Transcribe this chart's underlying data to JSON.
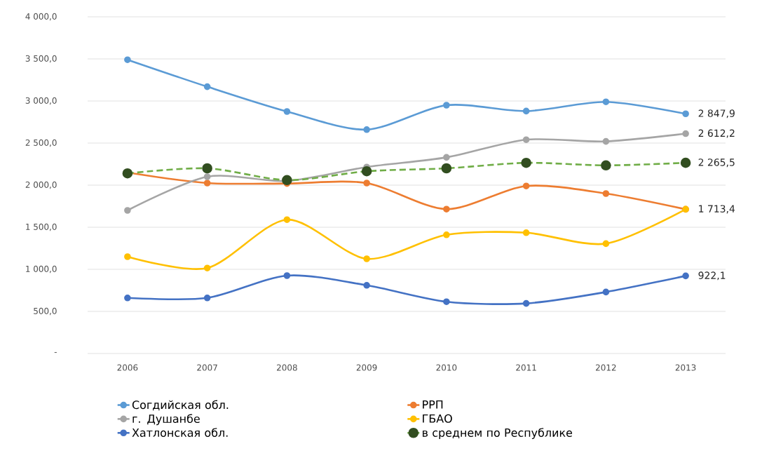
{
  "chart_data": {
    "type": "line",
    "categories": [
      "2006",
      "2007",
      "2008",
      "2009",
      "2010",
      "2011",
      "2012",
      "2013"
    ],
    "ylim": [
      0,
      4000
    ],
    "yticks": [
      {
        "value": 0,
        "label": "-"
      },
      {
        "value": 500,
        "label": "500,0"
      },
      {
        "value": 1000,
        "label": "1 000,0"
      },
      {
        "value": 1500,
        "label": "1 500,0"
      },
      {
        "value": 2000,
        "label": "2 000,0"
      },
      {
        "value": 2500,
        "label": "2 500,0"
      },
      {
        "value": 3000,
        "label": "3 000,0"
      },
      {
        "value": 3500,
        "label": "3 500,0"
      },
      {
        "value": 4000,
        "label": "4 000,0"
      }
    ],
    "grid": "y",
    "legend": "bottom",
    "marker": "circle",
    "line_style": "solid",
    "series": [
      {
        "name": "Согдийская обл.",
        "color": "#5b9bd5",
        "values": [
          3490,
          3170,
          2875,
          2660,
          2950,
          2880,
          2990,
          2847.9
        ],
        "value_labels": [
          null,
          null,
          null,
          null,
          null,
          null,
          null,
          "2 847,9"
        ]
      },
      {
        "name": "РРП",
        "color": "#ed7d31",
        "values": [
          2150,
          2025,
          2020,
          2025,
          1715,
          1990,
          1900,
          1713.4
        ],
        "value_labels": [
          null,
          null,
          null,
          null,
          null,
          null,
          null,
          "1 713,4"
        ]
      },
      {
        "name": "г. Душанбе",
        "color": "#a5a5a5",
        "values": [
          1700,
          2100,
          2050,
          2215,
          2330,
          2540,
          2520,
          2612.2
        ],
        "value_labels": [
          null,
          null,
          null,
          null,
          null,
          null,
          null,
          "2 612,2"
        ]
      },
      {
        "name": "ГБАО",
        "color": "#ffc000",
        "values": [
          1150,
          1015,
          1590,
          1125,
          1410,
          1435,
          1305,
          1713.4
        ]
      },
      {
        "name": "Хатлонская обл.",
        "color": "#4472c4",
        "values": [
          660,
          660,
          925,
          810,
          615,
          595,
          730,
          922.1
        ],
        "value_labels": [
          null,
          null,
          null,
          null,
          null,
          null,
          null,
          "922,1"
        ]
      },
      {
        "name": "в среднем по Республике",
        "color": "#70ad47",
        "line_style": "dashed",
        "values": [
          2140,
          2200,
          2060,
          2165,
          2200,
          2265,
          2235,
          2265.5
        ],
        "value_labels": [
          null,
          null,
          null,
          null,
          null,
          null,
          null,
          "2 265,5"
        ]
      }
    ]
  }
}
